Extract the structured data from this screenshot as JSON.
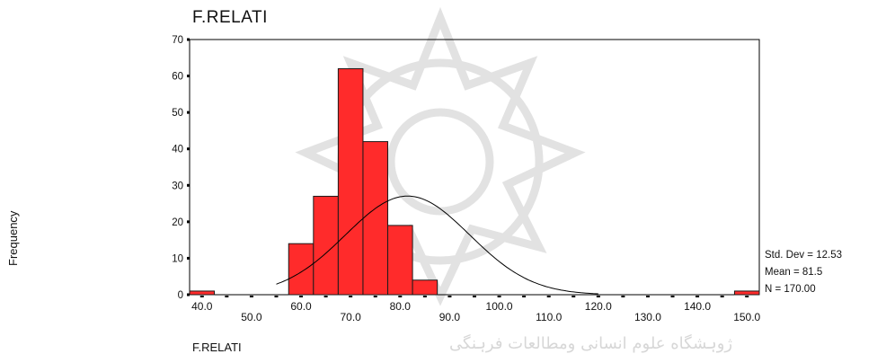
{
  "title": "F.RELATI",
  "xlabel": "F.RELATI",
  "ylabel": "Frequency",
  "watermark_text": "ژوہشگاه علوم انسانی ومطالعات فرہنگی",
  "stats": {
    "std_dev": "Std. Dev = 12.53",
    "mean": "Mean = 81.5",
    "n": "N = 170.00"
  },
  "colors": {
    "bar": "#ff2b2b",
    "bar_edge": "#1a1a1a",
    "curve": "#000000"
  },
  "chart_data": {
    "type": "bar",
    "title": "F.RELATI",
    "xlabel": "F.RELATI",
    "ylabel": "Frequency",
    "bin_width": 5,
    "categories": [
      "40.0",
      "45.0",
      "50.0",
      "55.0",
      "60.0",
      "65.0",
      "70.0",
      "75.0",
      "80.0",
      "85.0",
      "90.0",
      "95.0",
      "100.0",
      "105.0",
      "110.0",
      "115.0",
      "120.0",
      "125.0",
      "130.0",
      "135.0",
      "140.0",
      "145.0",
      "150.0"
    ],
    "values": [
      1,
      0,
      0,
      0,
      14,
      27,
      62,
      42,
      19,
      4,
      0,
      0,
      0,
      0,
      0,
      0,
      0,
      0,
      0,
      0,
      0,
      0,
      1
    ],
    "ylim": [
      0,
      70
    ],
    "yticks": [
      0,
      10,
      20,
      30,
      40,
      50,
      60,
      70
    ],
    "xtick_labels_low": [
      "40.0",
      "60.0",
      "80.0",
      "100.0",
      "120.0",
      "140.0"
    ],
    "xtick_labels_high": [
      "50.0",
      "70.0",
      "90.0",
      "110.0",
      "130.0",
      "150.0"
    ],
    "curve": {
      "mean": 81.5,
      "std_dev": 12.53,
      "n": 170
    },
    "grid": false
  }
}
